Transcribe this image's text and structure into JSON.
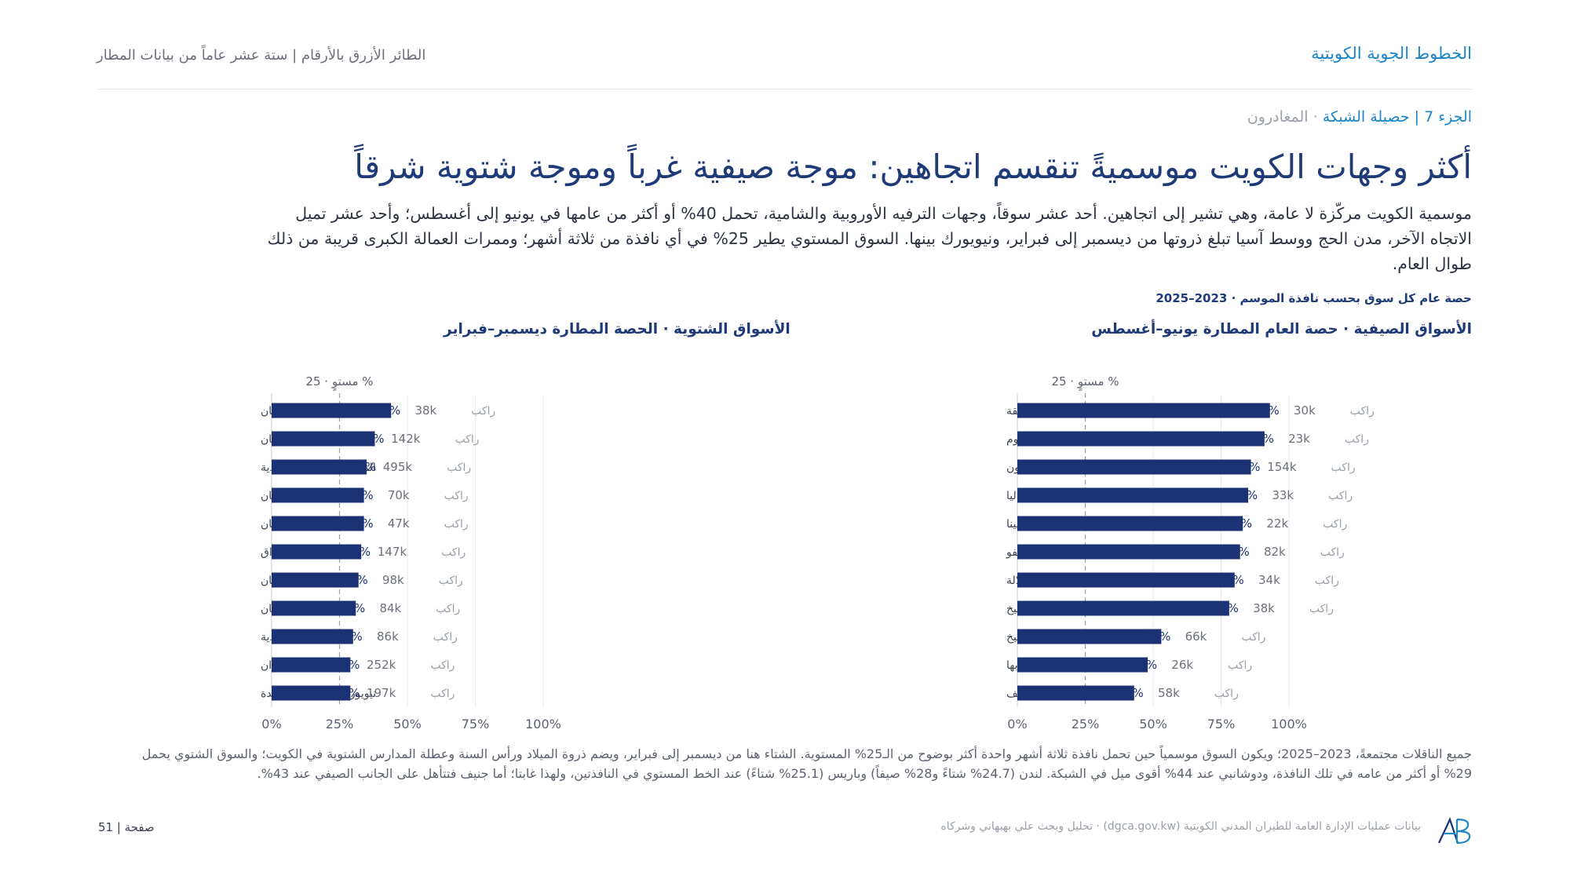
{
  "header": {
    "brand": "الخطوط الجوية الكويتية",
    "running_title": "الطائر الأزرق بالأرقام | ستة عشر عاماً من بيانات المطار"
  },
  "section": {
    "label": "الجزء 7 | حصيلة الشبكة",
    "sub": "· المغادرون"
  },
  "headline": "أكثر وجهات الكويت موسميةً تنقسم اتجاهين: موجة صيفية غرباً وموجة شتوية شرقاً",
  "lede": "موسمية الكويت مركّزة لا عامة، وهي تشير إلى اتجاهين. أحد عشر سوقاً، وجهات الترفيه الأوروبية والشامية، تحمل 40% أو أكثر من عامها في يونيو إلى أغسطس؛ وأحد عشر تميل الاتجاه الآخر، مدن الحج ووسط آسيا تبلغ ذروتها من ديسمبر إلى فبراير، ونيويورك بينها. السوق المستوي يطير 25% في أي نافذة من ثلاثة أشهر؛ وممرات العمالة الكبرى قريبة من ذلك طوال العام.",
  "chart_caption": "حصة عام كل سوق بحسب نافذة الموسم · 2023–2025",
  "colors": {
    "bar": "#1b3275",
    "value_text": "#1b3275",
    "ref_line": "#9aa0a8",
    "grid": "#e6e8eb"
  },
  "chart_data": [
    {
      "type": "bar",
      "orientation": "horizontal",
      "title": "الأسواق الصيفية · حصة العام المطارة يونيو–أغسطس",
      "ref_label": "% مستوٍ · 25",
      "ref_value": 25,
      "xlim": [
        0,
        100
      ],
      "ticks": [
        "0%",
        "25%",
        "50%",
        "75%",
        "100%"
      ],
      "tick_values": [
        0,
        25,
        50,
        75,
        100
      ],
      "pax_suffix": "راكب",
      "categories": [
        "مالقة",
        "بودروم",
        "طرابزون",
        "أنطاليا",
        "فيينا",
        "سراييفو",
        "صلالة",
        "شرم الشيخ",
        "ميونيخ",
        "أبها",
        "جنيف"
      ],
      "values": [
        93,
        91,
        86,
        85,
        83,
        82,
        80,
        78,
        53,
        48,
        43
      ],
      "value_labels": [
        "93%",
        "91%",
        "86%",
        "85%",
        "83%",
        "82%",
        "80%",
        "78%",
        "53%",
        "48%",
        "43%"
      ],
      "pax": [
        "30k",
        "23k",
        "154k",
        "33k",
        "22k",
        "82k",
        "34k",
        "38k",
        "66k",
        "26k",
        "58k"
      ]
    },
    {
      "type": "bar",
      "orientation": "horizontal",
      "title": "الأسواق الشتوية · الحصة المطارة ديسمبر–فبراير",
      "ref_label": "% مستوٍ · 25",
      "ref_value": 25,
      "xlim": [
        0,
        100
      ],
      "ticks": [
        "0%",
        "25%",
        "50%",
        "75%",
        "100%"
      ],
      "tick_values": [
        0,
        25,
        50,
        75,
        100
      ],
      "pax_suffix": "راكب",
      "categories": [
        "دوشانبي، طاجيكستان",
        "أوش، قيرغيزستان",
        "المدينة المنورة، السعودية",
        "ألماتي، كازاخستان",
        "بشكيك، قيرغيزستان",
        "النجف، العراق",
        "نمنغان، أوزبكستان",
        "طشقند، أوزبكستان",
        "الطائف، السعودية",
        "مشهد، إيران",
        "نيويورك، الولايات المتحدة"
      ],
      "values": [
        44,
        38,
        35,
        34,
        34,
        33,
        32,
        31,
        30,
        29,
        29
      ],
      "value_labels": [
        "44%",
        "38%",
        "35%",
        "34%",
        "34%",
        "33%",
        "32%",
        "31%",
        "30%",
        "29%",
        "29%"
      ],
      "pax": [
        "38k",
        "142k",
        "495k",
        "70k",
        "47k",
        "147k",
        "98k",
        "84k",
        "86k",
        "252k",
        "197k"
      ]
    }
  ],
  "footnote": "جميع الناقلات مجتمعةً، 2023–2025؛ ويكون السوق موسمياً حين تحمل نافذة ثلاثة أشهر واحدة أكثر بوضوح من الـ25% المستوية. الشتاء هنا من ديسمبر إلى فبراير، ويضم ذروة الميلاد ورأس السنة وعطلة المدارس الشتوية في الكويت؛ والسوق الشتوي يحمل 29% أو أكثر من عامه في تلك النافذة، ودوشانبي عند 44% أقوى ميل في الشبكة. لندن (24.7% شتاءً و28% صيفاً) وباريس (25.1% شتاءً) عند الخط المستوي في النافذتين، ولهذا غابتا؛ أما جنيف فتتأهل على الجانب الصيفي عند 43%.",
  "source": "بيانات عمليات الإدارة العامة للطيران المدني الكويتية (dgca.gov.kw) · تحليل وبحث علي بهبهاني وشركاه",
  "page_number": "صفحة | 51"
}
